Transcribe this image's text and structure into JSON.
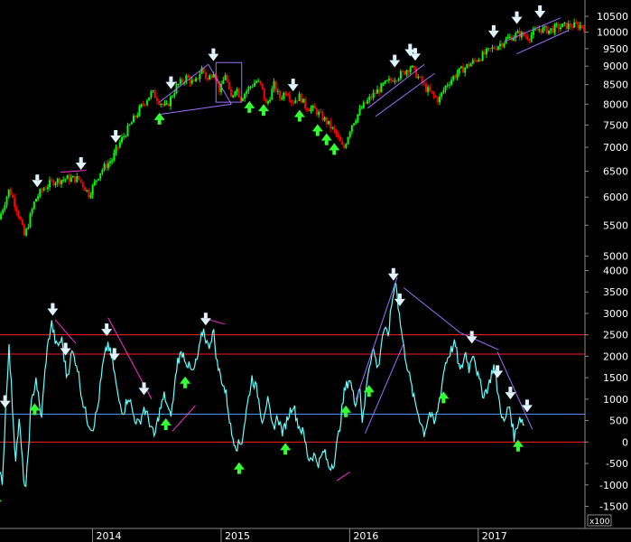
{
  "colors": {
    "background": "#000000",
    "price_up": "#00ff00",
    "price_down": "#ff0000",
    "oscillator": "#66ffff",
    "level_red": "#ff2020",
    "level_blue": "#4f8cff",
    "trendline": "#a070ff",
    "divergence": "#ff30d0",
    "arrow_down": "#e0f4ff",
    "arrow_up": "#33ff33",
    "axis": "#888888"
  },
  "chart_data": [
    {
      "type": "candlestick",
      "name": "price",
      "y_scale": "log",
      "ylim": [
        4800,
        10800
      ],
      "x_range": [
        2013.28,
        2017.83
      ],
      "yticks": [
        10500,
        10000,
        9500,
        9000,
        8500,
        8000,
        7500,
        7000,
        6500,
        6000,
        5500,
        5000
      ],
      "anchors": [
        [
          2013.28,
          5600
        ],
        [
          2013.36,
          6150
        ],
        [
          2013.43,
          5700
        ],
        [
          2013.48,
          5300
        ],
        [
          2013.56,
          5950
        ],
        [
          2013.62,
          6150
        ],
        [
          2013.7,
          6300
        ],
        [
          2013.8,
          6350
        ],
        [
          2013.9,
          6350
        ],
        [
          2013.98,
          6050
        ],
        [
          2014.07,
          6500
        ],
        [
          2014.16,
          6750
        ],
        [
          2014.22,
          7100
        ],
        [
          2014.32,
          7600
        ],
        [
          2014.4,
          8000
        ],
        [
          2014.47,
          8300
        ],
        [
          2014.52,
          8100
        ],
        [
          2014.58,
          7900
        ],
        [
          2014.66,
          8450
        ],
        [
          2014.74,
          8700
        ],
        [
          2014.8,
          8500
        ],
        [
          2014.86,
          8950
        ],
        [
          2014.9,
          8600
        ],
        [
          2014.95,
          8900
        ],
        [
          2015.0,
          8300
        ],
        [
          2015.04,
          8800
        ],
        [
          2015.08,
          8100
        ],
        [
          2015.12,
          8450
        ],
        [
          2015.16,
          8150
        ],
        [
          2015.22,
          8400
        ],
        [
          2015.28,
          8600
        ],
        [
          2015.32,
          8450
        ],
        [
          2015.36,
          7950
        ],
        [
          2015.42,
          8500
        ],
        [
          2015.46,
          8150
        ],
        [
          2015.52,
          8350
        ],
        [
          2015.56,
          8050
        ],
        [
          2015.62,
          8200
        ],
        [
          2015.66,
          7950
        ],
        [
          2015.74,
          7850
        ],
        [
          2015.82,
          7600
        ],
        [
          2015.9,
          7300
        ],
        [
          2015.96,
          6950
        ],
        [
          2016.02,
          7500
        ],
        [
          2016.1,
          7900
        ],
        [
          2016.18,
          8200
        ],
        [
          2016.26,
          8450
        ],
        [
          2016.34,
          8650
        ],
        [
          2016.42,
          8800
        ],
        [
          2016.48,
          9000
        ],
        [
          2016.54,
          8700
        ],
        [
          2016.6,
          8400
        ],
        [
          2016.66,
          8200
        ],
        [
          2016.7,
          8100
        ],
        [
          2016.76,
          8500
        ],
        [
          2016.84,
          8800
        ],
        [
          2016.92,
          9000
        ],
        [
          2017.0,
          9200
        ],
        [
          2017.08,
          9400
        ],
        [
          2017.16,
          9600
        ],
        [
          2017.24,
          9800
        ],
        [
          2017.32,
          9950
        ],
        [
          2017.4,
          9850
        ],
        [
          2017.48,
          10100
        ],
        [
          2017.56,
          10050
        ],
        [
          2017.62,
          10150
        ],
        [
          2017.7,
          10200
        ]
      ],
      "annotations": {
        "down_arrows": [
          2013.57,
          2013.91,
          2014.18,
          2014.61,
          2014.94,
          2015.56,
          2016.35,
          2016.47,
          2016.51,
          2017.12,
          2017.3,
          2017.48
        ],
        "up_arrows": [
          2014.52,
          2015.22,
          2015.33,
          2015.61,
          2015.75,
          2015.82,
          2015.88
        ]
      }
    },
    {
      "type": "line",
      "name": "oscillator",
      "ylim": [
        -1700,
        4200
      ],
      "x_range": [
        2013.28,
        2017.83
      ],
      "yticks": [
        4000,
        3500,
        3000,
        2500,
        2000,
        1500,
        1000,
        500,
        0,
        -500,
        -1000,
        -1500
      ],
      "scale_label": "x100",
      "levels": {
        "upper_red": 2500,
        "mid_red": 2050,
        "blue": 650,
        "zero_red": 0
      },
      "anchors": [
        [
          2013.28,
          -800
        ],
        [
          2013.3,
          -900
        ],
        [
          2013.33,
          1200
        ],
        [
          2013.35,
          2200
        ],
        [
          2013.37,
          1200
        ],
        [
          2013.4,
          -400
        ],
        [
          2013.43,
          500
        ],
        [
          2013.46,
          -700
        ],
        [
          2013.48,
          -1200
        ],
        [
          2013.52,
          800
        ],
        [
          2013.56,
          1500
        ],
        [
          2013.6,
          500
        ],
        [
          2013.64,
          2000
        ],
        [
          2013.68,
          2800
        ],
        [
          2013.72,
          2200
        ],
        [
          2013.76,
          2400
        ],
        [
          2013.8,
          1500
        ],
        [
          2013.84,
          2100
        ],
        [
          2013.88,
          1800
        ],
        [
          2013.92,
          1000
        ],
        [
          2013.96,
          500
        ],
        [
          2014.0,
          300
        ],
        [
          2014.04,
          800
        ],
        [
          2014.08,
          1800
        ],
        [
          2014.12,
          2300
        ],
        [
          2014.16,
          1800
        ],
        [
          2014.2,
          1000
        ],
        [
          2014.24,
          700
        ],
        [
          2014.28,
          1100
        ],
        [
          2014.32,
          600
        ],
        [
          2014.36,
          400
        ],
        [
          2014.4,
          800
        ],
        [
          2014.44,
          500
        ],
        [
          2014.48,
          100
        ],
        [
          2014.52,
          700
        ],
        [
          2014.56,
          1100
        ],
        [
          2014.6,
          600
        ],
        [
          2014.62,
          800
        ],
        [
          2014.66,
          1900
        ],
        [
          2014.7,
          2100
        ],
        [
          2014.74,
          1800
        ],
        [
          2014.78,
          1600
        ],
        [
          2014.82,
          2000
        ],
        [
          2014.86,
          2650
        ],
        [
          2014.9,
          2200
        ],
        [
          2014.94,
          2600
        ],
        [
          2014.97,
          1800
        ],
        [
          2015.0,
          1500
        ],
        [
          2015.04,
          1100
        ],
        [
          2015.08,
          200
        ],
        [
          2015.12,
          -100
        ],
        [
          2015.16,
          0
        ],
        [
          2015.2,
          800
        ],
        [
          2015.24,
          1500
        ],
        [
          2015.28,
          1200
        ],
        [
          2015.32,
          500
        ],
        [
          2015.36,
          1000
        ],
        [
          2015.4,
          300
        ],
        [
          2015.44,
          600
        ],
        [
          2015.48,
          200
        ],
        [
          2015.52,
          600
        ],
        [
          2015.56,
          900
        ],
        [
          2015.6,
          400
        ],
        [
          2015.64,
          200
        ],
        [
          2015.68,
          -400
        ],
        [
          2015.72,
          -300
        ],
        [
          2015.76,
          -500
        ],
        [
          2015.8,
          -200
        ],
        [
          2015.84,
          -600
        ],
        [
          2015.88,
          -450
        ],
        [
          2015.92,
          300
        ],
        [
          2015.96,
          1200
        ],
        [
          2016.0,
          1500
        ],
        [
          2016.04,
          900
        ],
        [
          2016.08,
          1300
        ],
        [
          2016.1,
          400
        ],
        [
          2016.14,
          1600
        ],
        [
          2016.18,
          2200
        ],
        [
          2016.22,
          1700
        ],
        [
          2016.26,
          2600
        ],
        [
          2016.3,
          2500
        ],
        [
          2016.33,
          3300
        ],
        [
          2016.36,
          3800
        ],
        [
          2016.38,
          3100
        ],
        [
          2016.42,
          2200
        ],
        [
          2016.46,
          1600
        ],
        [
          2016.5,
          1000
        ],
        [
          2016.54,
          600
        ],
        [
          2016.58,
          200
        ],
        [
          2016.62,
          700
        ],
        [
          2016.66,
          400
        ],
        [
          2016.7,
          1000
        ],
        [
          2016.74,
          1800
        ],
        [
          2016.78,
          2100
        ],
        [
          2016.82,
          2300
        ],
        [
          2016.86,
          1600
        ],
        [
          2016.9,
          2100
        ],
        [
          2016.93,
          1700
        ],
        [
          2016.96,
          2150
        ],
        [
          2017.0,
          1500
        ],
        [
          2017.04,
          1100
        ],
        [
          2017.08,
          1300
        ],
        [
          2017.12,
          1800
        ],
        [
          2017.16,
          1000
        ],
        [
          2017.2,
          400
        ],
        [
          2017.24,
          900
        ],
        [
          2017.28,
          100
        ],
        [
          2017.32,
          600
        ],
        [
          2017.36,
          400
        ]
      ],
      "annotations": {
        "down_arrows": [
          2013.32,
          2013.69,
          2013.79,
          2014.11,
          2014.17,
          2014.4,
          2014.88,
          2016.34,
          2016.39,
          2016.95,
          2017.15,
          2017.25,
          2017.38
        ],
        "up_arrows": [
          2013.25,
          2013.55,
          2014.57,
          2014.72,
          2015.14,
          2015.5,
          2015.97,
          2016.15,
          2016.73,
          2017.31
        ]
      }
    }
  ],
  "x_axis": {
    "ticks": [
      {
        "label": "2014",
        "x": 2014.0
      },
      {
        "label": "2015",
        "x": 2015.0
      },
      {
        "label": "2016",
        "x": 2016.0
      },
      {
        "label": "2017",
        "x": 2017.0
      }
    ]
  }
}
